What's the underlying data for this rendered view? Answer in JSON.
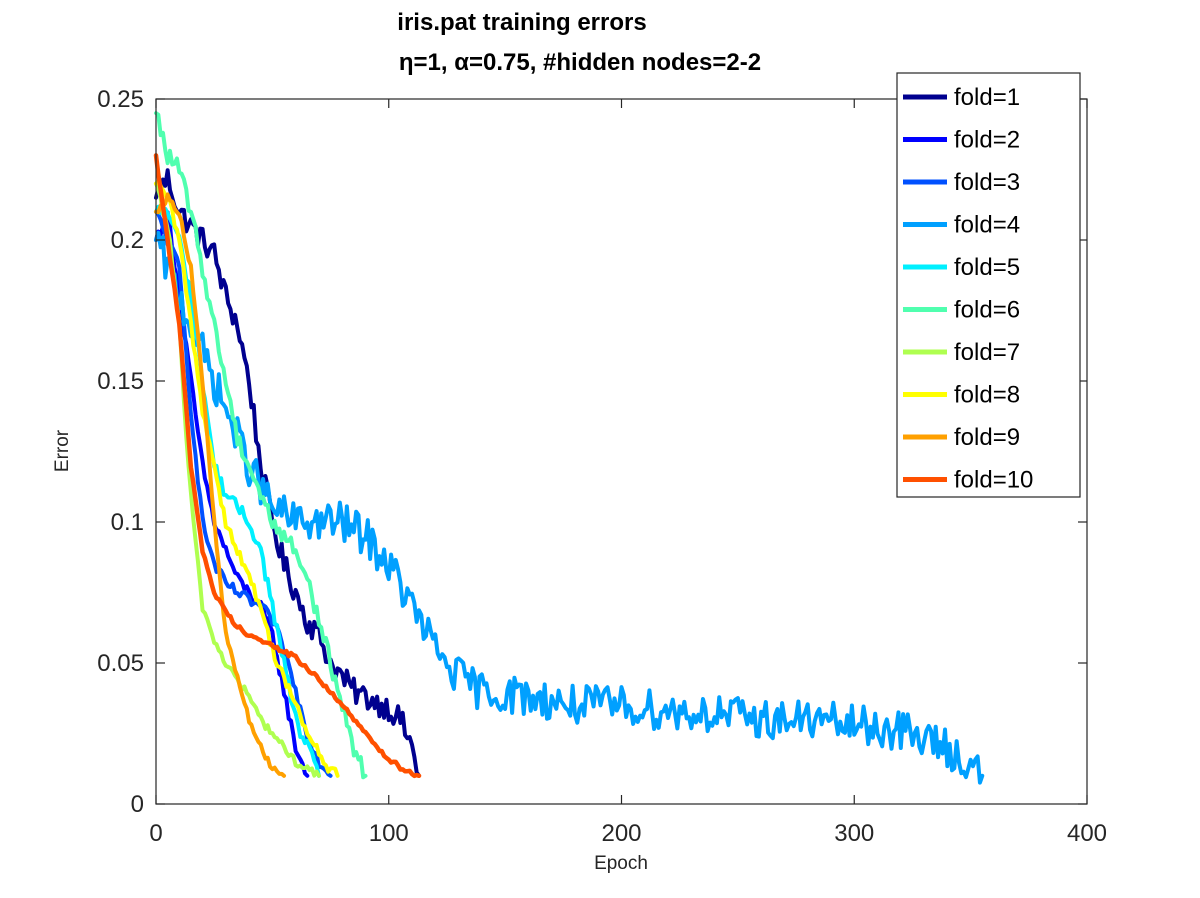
{
  "chart_data": {
    "type": "line",
    "title": "iris.pat training errors",
    "subtitle": "η=1,   α=0.75, #hidden nodes=2-2",
    "xlabel": "Epoch",
    "ylabel": "Error",
    "xlim": [
      0,
      400
    ],
    "ylim": [
      0,
      0.25
    ],
    "xticks": [
      0,
      100,
      200,
      300,
      400
    ],
    "xtick_labels": [
      "0",
      "100",
      "200",
      "300",
      "400"
    ],
    "yticks": [
      0,
      0.05,
      0.1,
      0.15,
      0.2,
      0.25
    ],
    "ytick_labels": [
      "0",
      "0.05",
      "0.1",
      "0.15",
      "0.2",
      "0.25"
    ],
    "grid": false,
    "legend_position": "top-right",
    "series": [
      {
        "name": "fold=1",
        "color": "#00008f",
        "noise": 0.0045,
        "x": [
          0,
          5,
          10,
          15,
          20,
          25,
          30,
          35,
          40,
          45,
          50,
          55,
          60,
          65,
          70,
          75,
          80,
          85,
          90,
          95,
          100,
          105,
          110,
          113
        ],
        "y": [
          0.215,
          0.222,
          0.21,
          0.205,
          0.2,
          0.195,
          0.18,
          0.17,
          0.15,
          0.12,
          0.1,
          0.085,
          0.075,
          0.065,
          0.06,
          0.05,
          0.045,
          0.04,
          0.038,
          0.036,
          0.034,
          0.03,
          0.02,
          0.01
        ]
      },
      {
        "name": "fold=2",
        "color": "#0000ff",
        "noise": 0.002,
        "x": [
          0,
          5,
          10,
          15,
          20,
          25,
          30,
          35,
          40,
          45,
          50,
          55,
          60,
          65
        ],
        "y": [
          0.2,
          0.21,
          0.18,
          0.15,
          0.12,
          0.1,
          0.09,
          0.08,
          0.075,
          0.07,
          0.06,
          0.04,
          0.02,
          0.01
        ]
      },
      {
        "name": "fold=3",
        "color": "#0050ff",
        "noise": 0.002,
        "x": [
          0,
          5,
          10,
          15,
          20,
          25,
          30,
          35,
          40,
          45,
          50,
          55,
          60,
          65,
          70,
          75
        ],
        "y": [
          0.21,
          0.2,
          0.19,
          0.14,
          0.1,
          0.085,
          0.078,
          0.075,
          0.072,
          0.07,
          0.065,
          0.055,
          0.04,
          0.025,
          0.015,
          0.01
        ]
      },
      {
        "name": "fold=4",
        "color": "#00a0ff",
        "noise": 0.007,
        "x": [
          0,
          10,
          20,
          30,
          40,
          50,
          60,
          70,
          80,
          90,
          100,
          110,
          120,
          130,
          140,
          160,
          180,
          200,
          220,
          240,
          260,
          280,
          300,
          320,
          340,
          355
        ],
        "y": [
          0.2,
          0.18,
          0.16,
          0.14,
          0.12,
          0.105,
          0.1,
          0.1,
          0.1,
          0.095,
          0.085,
          0.07,
          0.055,
          0.045,
          0.04,
          0.038,
          0.035,
          0.035,
          0.033,
          0.032,
          0.03,
          0.03,
          0.028,
          0.026,
          0.02,
          0.01
        ]
      },
      {
        "name": "fold=5",
        "color": "#00f0ff",
        "noise": 0.0025,
        "x": [
          0,
          5,
          10,
          15,
          20,
          25,
          30,
          35,
          40,
          45,
          50,
          55,
          60,
          65,
          70
        ],
        "y": [
          0.21,
          0.21,
          0.2,
          0.18,
          0.15,
          0.12,
          0.11,
          0.105,
          0.1,
          0.09,
          0.07,
          0.05,
          0.03,
          0.02,
          0.01
        ]
      },
      {
        "name": "fold=6",
        "color": "#50ffaf",
        "noise": 0.003,
        "x": [
          0,
          5,
          10,
          15,
          20,
          25,
          30,
          35,
          40,
          45,
          50,
          55,
          60,
          65,
          70,
          75,
          80,
          85,
          90
        ],
        "y": [
          0.245,
          0.23,
          0.225,
          0.21,
          0.19,
          0.17,
          0.15,
          0.13,
          0.12,
          0.11,
          0.1,
          0.095,
          0.09,
          0.08,
          0.065,
          0.05,
          0.035,
          0.02,
          0.01
        ]
      },
      {
        "name": "fold=7",
        "color": "#afff50",
        "noise": 0.0015,
        "x": [
          0,
          3,
          6,
          10,
          13,
          16,
          20,
          25,
          30,
          35,
          40,
          45,
          50,
          55,
          60,
          65,
          70
        ],
        "y": [
          0.22,
          0.21,
          0.2,
          0.17,
          0.13,
          0.1,
          0.07,
          0.058,
          0.05,
          0.044,
          0.038,
          0.03,
          0.025,
          0.02,
          0.015,
          0.012,
          0.01
        ]
      },
      {
        "name": "fold=8",
        "color": "#ffff00",
        "noise": 0.002,
        "x": [
          0,
          5,
          10,
          15,
          20,
          25,
          30,
          35,
          40,
          45,
          50,
          55,
          60,
          65,
          70,
          75,
          78
        ],
        "y": [
          0.22,
          0.215,
          0.2,
          0.17,
          0.14,
          0.12,
          0.1,
          0.09,
          0.08,
          0.07,
          0.055,
          0.045,
          0.035,
          0.025,
          0.018,
          0.012,
          0.01
        ]
      },
      {
        "name": "fold=9",
        "color": "#ffa000",
        "noise": 0.0012,
        "x": [
          0,
          5,
          10,
          15,
          20,
          25,
          30,
          35,
          40,
          45,
          50,
          55
        ],
        "y": [
          0.21,
          0.215,
          0.21,
          0.19,
          0.15,
          0.1,
          0.06,
          0.045,
          0.03,
          0.02,
          0.013,
          0.01
        ]
      },
      {
        "name": "fold=10",
        "color": "#ff5000",
        "noise": 0.0008,
        "x": [
          0,
          5,
          10,
          15,
          20,
          25,
          30,
          35,
          40,
          45,
          50,
          55,
          60,
          65,
          70,
          75,
          80,
          85,
          90,
          95,
          100,
          105,
          110,
          113
        ],
        "y": [
          0.23,
          0.2,
          0.17,
          0.12,
          0.09,
          0.075,
          0.068,
          0.063,
          0.06,
          0.058,
          0.056,
          0.054,
          0.052,
          0.048,
          0.044,
          0.04,
          0.035,
          0.03,
          0.025,
          0.02,
          0.016,
          0.013,
          0.011,
          0.01
        ]
      }
    ]
  }
}
